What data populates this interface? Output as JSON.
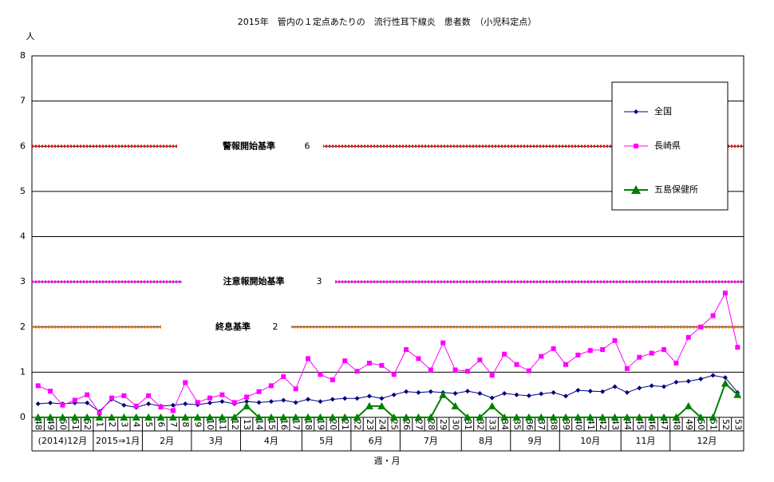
{
  "chart_data": {
    "type": "line",
    "title": "2015年　管内の１定点あたりの　流行性耳下線炎　患者数　（小児科定点）",
    "y_label": "人",
    "x_label": "週・月",
    "categories": [
      "48",
      "49",
      "50",
      "51",
      "52",
      "1",
      "2",
      "3",
      "4",
      "5",
      "6",
      "7",
      "8",
      "9",
      "10",
      "11",
      "12",
      "13",
      "14",
      "15",
      "16",
      "17",
      "18",
      "19",
      "20",
      "21",
      "22",
      "23",
      "24",
      "25",
      "26",
      "27",
      "28",
      "29",
      "30",
      "31",
      "32",
      "33",
      "34",
      "35",
      "36",
      "37",
      "38",
      "39",
      "40",
      "41",
      "42",
      "43",
      "44",
      "45",
      "46",
      "47",
      "48",
      "49",
      "50",
      "51",
      "52",
      "53"
    ],
    "month_labels": [
      "(2014)12月",
      "2015⇒1月",
      "2月",
      "3月",
      "4月",
      "5月",
      "6月",
      "7月",
      "8月",
      "9月",
      "10月",
      "11月",
      "12月"
    ],
    "series": [
      {
        "name": "全国",
        "color": "#000080",
        "marker": "diamond",
        "values": [
          0.3,
          0.32,
          0.3,
          0.32,
          0.32,
          0.13,
          0.4,
          0.27,
          0.22,
          0.3,
          0.25,
          0.27,
          0.3,
          0.28,
          0.32,
          0.35,
          0.3,
          0.35,
          0.33,
          0.35,
          0.38,
          0.33,
          0.4,
          0.35,
          0.4,
          0.42,
          0.42,
          0.47,
          0.42,
          0.5,
          0.57,
          0.55,
          0.57,
          0.55,
          0.53,
          0.58,
          0.53,
          0.43,
          0.53,
          0.5,
          0.48,
          0.52,
          0.55,
          0.47,
          0.6,
          0.58,
          0.57,
          0.68,
          0.55,
          0.65,
          0.7,
          0.68,
          0.78,
          0.8,
          0.85,
          0.93,
          0.88,
          0.55
        ]
      },
      {
        "name": "長崎県",
        "color": "#ff00ff",
        "marker": "square",
        "values": [
          0.7,
          0.58,
          0.27,
          0.38,
          0.5,
          0.1,
          0.43,
          0.48,
          0.25,
          0.48,
          0.23,
          0.15,
          0.77,
          0.33,
          0.43,
          0.5,
          0.33,
          0.45,
          0.57,
          0.7,
          0.9,
          0.63,
          1.3,
          0.95,
          0.83,
          1.25,
          1.02,
          1.2,
          1.15,
          0.95,
          1.5,
          1.3,
          1.05,
          1.65,
          1.05,
          1.02,
          1.27,
          0.93,
          1.4,
          1.17,
          1.03,
          1.35,
          1.52,
          1.17,
          1.38,
          1.48,
          1.5,
          1.7,
          1.08,
          1.33,
          1.42,
          1.5,
          1.2,
          1.77,
          2.0,
          2.25,
          2.75,
          1.55
        ]
      },
      {
        "name": "五島保健所",
        "color": "#008000",
        "marker": "triangle",
        "values": [
          0,
          0,
          0,
          0,
          0,
          0,
          0,
          0,
          0,
          0,
          0,
          0,
          0,
          0,
          0,
          0,
          0,
          0.25,
          0,
          0,
          0,
          0,
          0,
          0,
          0,
          0,
          0,
          0.25,
          0.25,
          0,
          0,
          0,
          0,
          0.5,
          0.25,
          0,
          0,
          0.25,
          0,
          0,
          0,
          0,
          0,
          0,
          0,
          0,
          0,
          0,
          0,
          0,
          0,
          0,
          0,
          0.25,
          0,
          0,
          0.75,
          0.5
        ]
      }
    ],
    "reference_lines": [
      {
        "label": "警報開始基準",
        "value": 6,
        "color": "#ff0000"
      },
      {
        "label": "注意報開始基準",
        "value": 3,
        "color": "#ff00ff"
      },
      {
        "label": "終息基準",
        "value": 2,
        "color": "#e07800"
      }
    ],
    "ylim": [
      0,
      8
    ],
    "yticks": [
      0,
      1,
      2,
      3,
      4,
      5,
      6,
      7,
      8
    ],
    "grid": true
  }
}
